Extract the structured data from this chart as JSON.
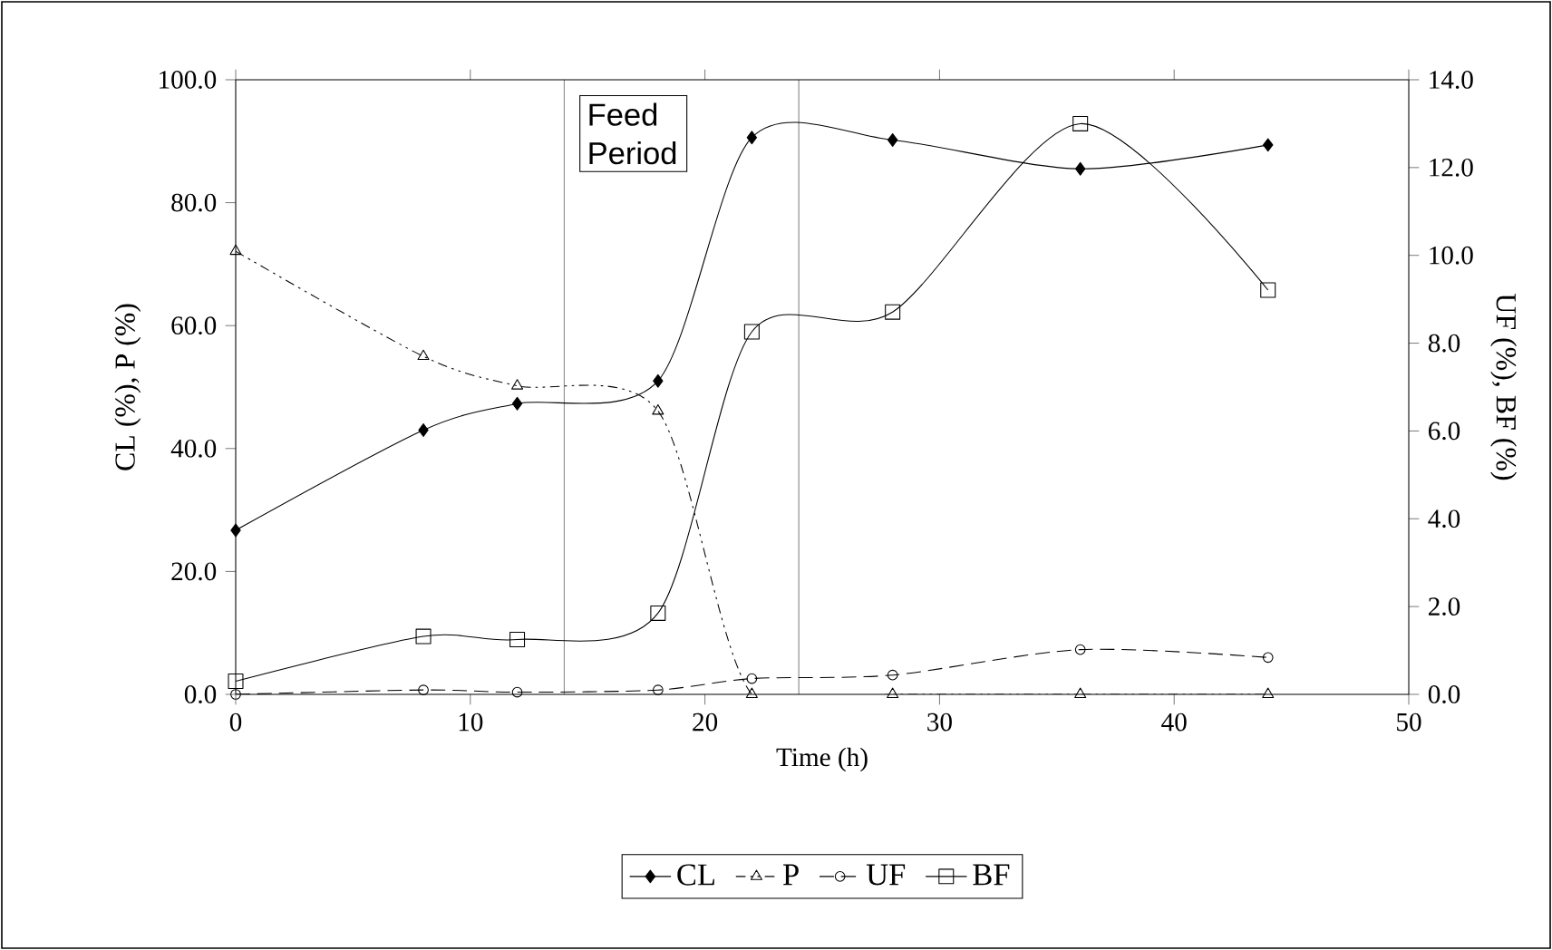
{
  "chart_data": {
    "type": "line",
    "xlabel": "Time (h)",
    "ylabel": "CL (%), P (%)",
    "y2label": "UF (%), BF (%)",
    "x": [
      0,
      8,
      12,
      18,
      22,
      28,
      36,
      44
    ],
    "series": [
      {
        "name": "CL",
        "color": "#000000",
        "marker": "diamond",
        "line_style": "solid",
        "values": [
          26.7,
          43.0,
          47.3,
          51.0,
          90.6,
          90.2,
          85.5,
          89.4
        ]
      },
      {
        "name": "P",
        "color": "#000000",
        "marker": "triangle",
        "line_style": "dashdot",
        "values": [
          72.1,
          55.0,
          50.2,
          46.1,
          0.0,
          0.0,
          0.0,
          0.0
        ]
      },
      {
        "name": "UF",
        "color": "#000000",
        "marker": "circle",
        "line_style": "dashed",
        "axis": "y2",
        "values": [
          0.0,
          0.1,
          0.05,
          0.1,
          0.36,
          0.44,
          1.02,
          0.84
        ]
      },
      {
        "name": "BF",
        "color": "#000000",
        "marker": "square",
        "line_style": "solid",
        "axis": "y2",
        "values": [
          0.3,
          1.32,
          1.25,
          1.85,
          8.26,
          8.71,
          13.0,
          9.21
        ]
      }
    ],
    "xlim": [
      0,
      50
    ],
    "xticks": [
      0,
      10,
      20,
      30,
      40,
      50
    ],
    "ylim": [
      0,
      100
    ],
    "yticks": [
      {
        "value": 0,
        "label": "0.0"
      },
      {
        "value": 20,
        "label": "20.0"
      },
      {
        "value": 40,
        "label": "40.0"
      },
      {
        "value": 60,
        "label": "60.0"
      },
      {
        "value": 80,
        "label": "80.0"
      },
      {
        "value": 100,
        "label": "100.0"
      }
    ],
    "y2lim": [
      0,
      14
    ],
    "y2ticks": [
      {
        "value": 0,
        "label": "0.0"
      },
      {
        "value": 2,
        "label": "2.0"
      },
      {
        "value": 4,
        "label": "4.0"
      },
      {
        "value": 6,
        "label": "6.0"
      },
      {
        "value": 8,
        "label": "8.0"
      },
      {
        "value": 10,
        "label": "10.0"
      },
      {
        "value": 12,
        "label": "12.0"
      },
      {
        "value": 14,
        "label": "14.0"
      }
    ],
    "ref_lines": [
      {
        "axis": "x",
        "value": 14,
        "color": "#000000"
      },
      {
        "axis": "x",
        "value": 24,
        "color": "#000000"
      }
    ],
    "annotations": [
      "Feed Period"
    ],
    "grid": false,
    "legend": "bottom"
  }
}
